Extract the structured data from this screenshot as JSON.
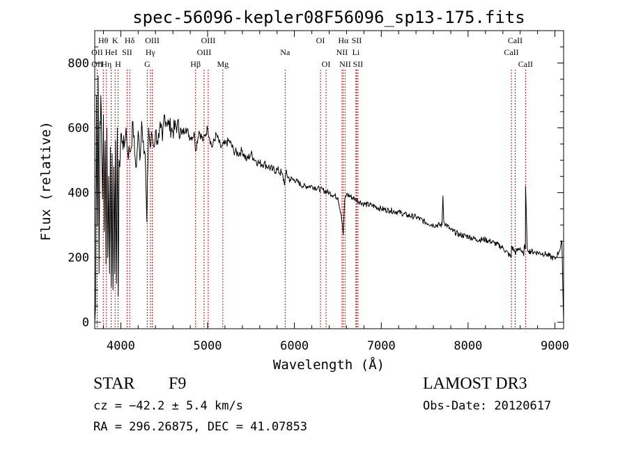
{
  "chart_data": {
    "type": "line",
    "title": "spec-56096-kepler08F56096_sp13-175.fits",
    "xlabel": "Wavelength (Å)",
    "ylabel": "Flux (relative)",
    "xlim": [
      3700,
      9100
    ],
    "ylim": [
      -20,
      900
    ],
    "xticks": [
      4000,
      5000,
      6000,
      7000,
      8000,
      9000
    ],
    "yticks": [
      0,
      200,
      400,
      600,
      800
    ],
    "series": [
      {
        "name": "flux",
        "x": [
          3700,
          3710,
          3720,
          3730,
          3740,
          3750,
          3760,
          3770,
          3780,
          3790,
          3800,
          3810,
          3820,
          3830,
          3840,
          3850,
          3860,
          3870,
          3880,
          3890,
          3900,
          3910,
          3920,
          3930,
          3940,
          3950,
          3960,
          3970,
          3980,
          3990,
          4000,
          4020,
          4040,
          4060,
          4080,
          4100,
          4120,
          4140,
          4160,
          4180,
          4200,
          4220,
          4240,
          4260,
          4280,
          4300,
          4320,
          4340,
          4360,
          4380,
          4400,
          4420,
          4440,
          4460,
          4480,
          4500,
          4550,
          4600,
          4650,
          4700,
          4750,
          4800,
          4850,
          4861,
          4900,
          4950,
          5000,
          5050,
          5100,
          5150,
          5200,
          5250,
          5300,
          5350,
          5400,
          5450,
          5500,
          5550,
          5600,
          5650,
          5700,
          5750,
          5800,
          5850,
          5890,
          5900,
          5950,
          6000,
          6100,
          6200,
          6300,
          6400,
          6500,
          6540,
          6563,
          6580,
          6600,
          6700,
          6800,
          6900,
          7000,
          7100,
          7200,
          7300,
          7400,
          7500,
          7600,
          7700,
          7710,
          7720,
          7800,
          7900,
          8000,
          8100,
          8200,
          8300,
          8400,
          8498,
          8500,
          8542,
          8600,
          8640,
          8650,
          8660,
          8662,
          8680,
          8700,
          8800,
          8900,
          9000,
          9050,
          9080,
          9100
        ],
        "y": [
          0,
          50,
          700,
          300,
          760,
          150,
          620,
          700,
          520,
          380,
          640,
          280,
          560,
          180,
          600,
          200,
          450,
          150,
          540,
          110,
          520,
          100,
          480,
          150,
          560,
          120,
          600,
          80,
          500,
          480,
          580,
          560,
          540,
          600,
          520,
          530,
          540,
          620,
          520,
          480,
          590,
          500,
          620,
          560,
          520,
          310,
          600,
          540,
          580,
          540,
          590,
          560,
          570,
          600,
          560,
          640,
          610,
          590,
          610,
          580,
          600,
          570,
          580,
          530,
          590,
          560,
          600,
          540,
          580,
          540,
          550,
          560,
          530,
          520,
          530,
          500,
          520,
          500,
          490,
          490,
          480,
          470,
          470,
          460,
          430,
          460,
          440,
          440,
          420,
          420,
          410,
          400,
          385,
          330,
          270,
          380,
          395,
          380,
          365,
          360,
          350,
          345,
          340,
          330,
          325,
          310,
          300,
          300,
          390,
          310,
          285,
          270,
          265,
          255,
          255,
          245,
          230,
          200,
          235,
          215,
          230,
          205,
          240,
          230,
          420,
          230,
          220,
          215,
          210,
          195,
          220,
          250,
          0
        ]
      }
    ],
    "line_labels": [
      {
        "label": "Hθ",
        "x": 3798,
        "row": 0
      },
      {
        "label": "OII",
        "x": 3727,
        "row": 1
      },
      {
        "label": "OII",
        "x": 3729,
        "row": 2
      },
      {
        "label": "K",
        "x": 3934,
        "row": 0
      },
      {
        "label": "HeI",
        "x": 3889,
        "row": 1
      },
      {
        "label": "Hη",
        "x": 3835,
        "row": 2
      },
      {
        "label": "Hδ",
        "x": 4102,
        "row": 0
      },
      {
        "label": "SII",
        "x": 4072,
        "row": 1
      },
      {
        "label": "H",
        "x": 3968,
        "row": 2
      },
      {
        "label": "OIII",
        "x": 4363,
        "row": 0
      },
      {
        "label": "Hγ",
        "x": 4340,
        "row": 1
      },
      {
        "label": "G",
        "x": 4305,
        "row": 2
      },
      {
        "label": "OIII",
        "x": 5007,
        "row": 0
      },
      {
        "label": "OIII",
        "x": 4959,
        "row": 1
      },
      {
        "label": "Hβ",
        "x": 4861,
        "row": 2
      },
      {
        "label": "Mg",
        "x": 5175,
        "row": 2
      },
      {
        "label": "Na",
        "x": 5893,
        "row": 1
      },
      {
        "label": "OI",
        "x": 6300,
        "row": 0
      },
      {
        "label": "OI",
        "x": 6364,
        "row": 2
      },
      {
        "label": "Hα",
        "x": 6563,
        "row": 0
      },
      {
        "label": "SII",
        "x": 6716,
        "row": 0
      },
      {
        "label": "NII",
        "x": 6548,
        "row": 1
      },
      {
        "label": "Li",
        "x": 6708,
        "row": 1
      },
      {
        "label": "NII",
        "x": 6584,
        "row": 2
      },
      {
        "label": "SII",
        "x": 6731,
        "row": 2
      },
      {
        "label": "CaII",
        "x": 8542,
        "row": 0
      },
      {
        "label": "CaII",
        "x": 8498,
        "row": 1
      },
      {
        "label": "CaII",
        "x": 8662,
        "row": 2
      }
    ],
    "marker_lines": [
      3727,
      3729,
      3798,
      3835,
      3889,
      3934,
      3968,
      4072,
      4102,
      4305,
      4340,
      4363,
      4861,
      4959,
      5007,
      5175,
      5893,
      6300,
      6364,
      6548,
      6563,
      6584,
      6708,
      6716,
      6731,
      8498,
      8542,
      8662
    ],
    "marker_color": "#cc0000",
    "grid": false
  },
  "info": {
    "object_class": "STAR",
    "subclass": "F9",
    "survey": "LAMOST DR3",
    "cz": "cz = −42.2 ± 5.4 km/s",
    "obs_date": "Obs-Date: 20120617",
    "coords": "RA = 296.26875, DEC =  41.07853"
  }
}
